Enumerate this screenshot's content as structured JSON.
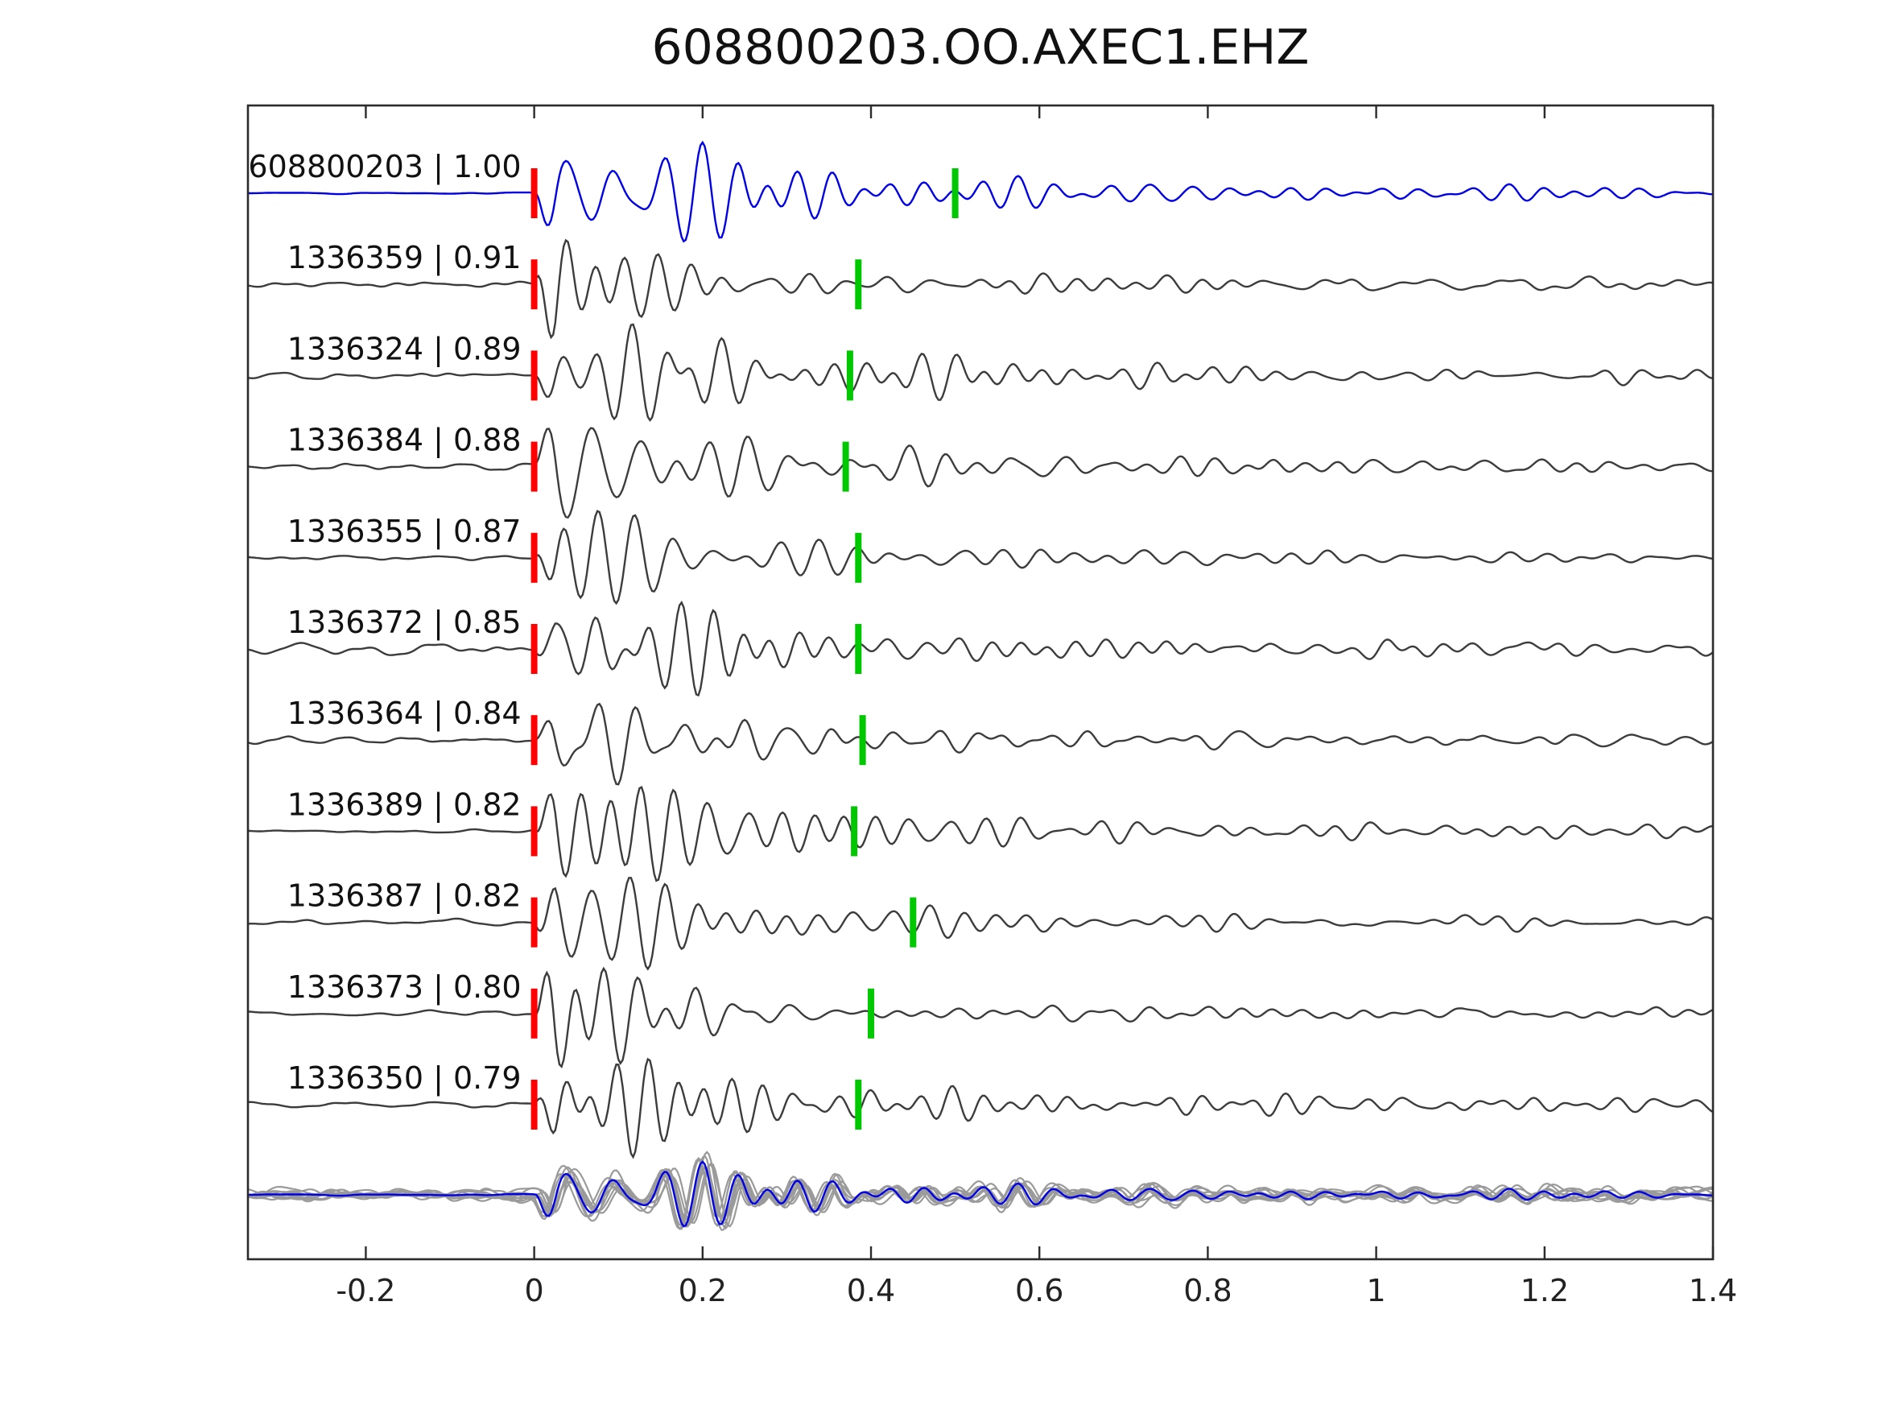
{
  "figure": {
    "title": "608800203.OO.AXEC1.EHZ"
  },
  "chart_data": {
    "type": "line",
    "title": "608800203.OO.AXEC1.EHZ",
    "subtitle": "",
    "xlabel": "",
    "ylabel": "",
    "xlim": [
      -0.34,
      1.4
    ],
    "x_ticks": [
      -0.2,
      0,
      0.2,
      0.4,
      0.6,
      0.8,
      1,
      1.2,
      1.4
    ],
    "x_tick_labels": [
      "-0.2",
      "0",
      "0.2",
      "0.4",
      "0.6",
      "0.8",
      "1",
      "1.2",
      "1.4"
    ],
    "grid": false,
    "legend": "none",
    "colors": {
      "template": "#0000e6",
      "trace": "#3c3c3c",
      "stack": "#9a9a9a",
      "pick_red": "#ff0000",
      "pick_green": "#00c800",
      "axis": "#2b2b2b",
      "label_text": "#111111"
    },
    "traces": [
      {
        "id": "608800203",
        "correlation": "1.00",
        "label": "608800203 | 1.00",
        "color_role": "template",
        "pick_red": 0.0,
        "pick_green": 0.5,
        "seed": 1
      },
      {
        "id": "1336359",
        "correlation": "0.91",
        "label": "1336359 | 0.91",
        "color_role": "trace",
        "pick_red": 0.0,
        "pick_green": 0.385,
        "seed": 2
      },
      {
        "id": "1336324",
        "correlation": "0.89",
        "label": "1336324 | 0.89",
        "color_role": "trace",
        "pick_red": 0.0,
        "pick_green": 0.375,
        "seed": 3
      },
      {
        "id": "1336384",
        "correlation": "0.88",
        "label": "1336384 | 0.88",
        "color_role": "trace",
        "pick_red": 0.0,
        "pick_green": 0.37,
        "seed": 4
      },
      {
        "id": "1336355",
        "correlation": "0.87",
        "label": "1336355 | 0.87",
        "color_role": "trace",
        "pick_red": 0.0,
        "pick_green": 0.385,
        "seed": 5
      },
      {
        "id": "1336372",
        "correlation": "0.85",
        "label": "1336372 | 0.85",
        "color_role": "trace",
        "pick_red": 0.0,
        "pick_green": 0.385,
        "seed": 6
      },
      {
        "id": "1336364",
        "correlation": "0.84",
        "label": "1336364 | 0.84",
        "color_role": "trace",
        "pick_red": 0.0,
        "pick_green": 0.39,
        "seed": 7
      },
      {
        "id": "1336389",
        "correlation": "0.82",
        "label": "1336389 | 0.82",
        "color_role": "trace",
        "pick_red": 0.0,
        "pick_green": 0.38,
        "seed": 8
      },
      {
        "id": "1336387",
        "correlation": "0.82",
        "label": "1336387 | 0.82",
        "color_role": "trace",
        "pick_red": 0.0,
        "pick_green": 0.45,
        "seed": 9
      },
      {
        "id": "1336373",
        "correlation": "0.80",
        "label": "1336373 | 0.80",
        "color_role": "trace",
        "pick_red": 0.0,
        "pick_green": 0.4,
        "seed": 10
      },
      {
        "id": "1336350",
        "correlation": "0.79",
        "label": "1336350 | 0.79",
        "color_role": "trace",
        "pick_red": 0.0,
        "pick_green": 0.385,
        "seed": 11
      }
    ],
    "stack": {
      "overlay_count": 10,
      "has_template_overlay": true
    },
    "waveform_synthesis": {
      "dt": 0.0025,
      "rise": 0.025,
      "decay_fast": 0.16,
      "decay_mid": 0.55,
      "decay_coda": 2.0,
      "f_min": 16,
      "f_span": 15
    },
    "layout": {
      "first_baseline": 240,
      "row_spacing": 113.2,
      "stack_baseline": 1484
    }
  }
}
